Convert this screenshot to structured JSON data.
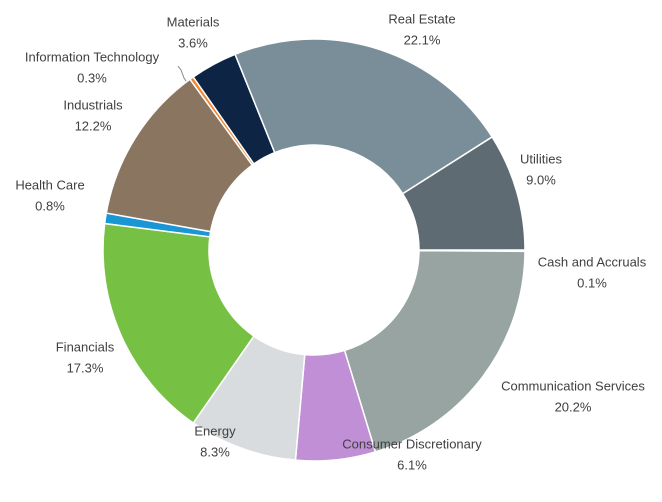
{
  "chart_data": {
    "type": "donut",
    "categories": [
      "Cash and Accruals",
      "Communication Services",
      "Consumer Discretionary",
      "Energy",
      "Financials",
      "Health Care",
      "Industrials",
      "Information Technology",
      "Materials",
      "Real Estate",
      "Utilities"
    ],
    "values": [
      0.1,
      20.2,
      6.1,
      8.3,
      17.3,
      0.8,
      12.2,
      0.3,
      3.6,
      22.1,
      9.0
    ],
    "value_labels": [
      "0.1%",
      "20.2%",
      "6.1%",
      "8.3%",
      "17.3%",
      "0.8%",
      "12.2%",
      "0.3%",
      "3.6%",
      "22.1%",
      "9.0%"
    ],
    "colors": [
      "#b4bcbf",
      "#98a4a2",
      "#c08fd6",
      "#d9dcde",
      "#76c043",
      "#1a96d4",
      "#8a7560",
      "#f58426",
      "#0d2444",
      "#7a8e99",
      "#5f6b73"
    ]
  }
}
